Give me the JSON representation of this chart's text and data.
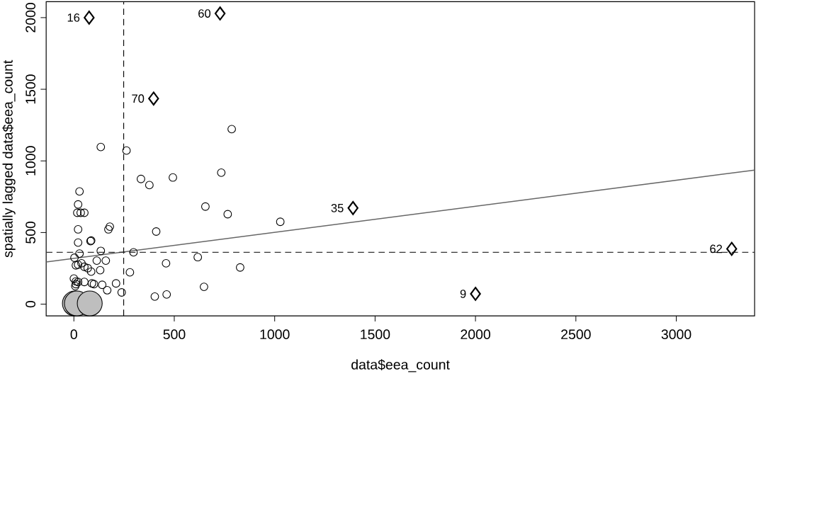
{
  "chart_data": {
    "type": "scatter",
    "xlabel": "data$eea_count",
    "ylabel": "spatially lagged data$eea_count",
    "xlim": [
      -138,
      3390
    ],
    "ylim": [
      -82,
      2111
    ],
    "xticks": [
      0,
      500,
      1000,
      1500,
      2000,
      2500,
      3000
    ],
    "yticks": [
      0,
      500,
      1000,
      1500,
      2000
    ],
    "grid": false,
    "series": [
      {
        "marker": "circle",
        "color": "#000000",
        "x": [
          134,
          262,
          786,
          334,
          376,
          493,
          734,
          655,
          766,
          1028,
          410,
          459,
          617,
          828,
          648,
          462,
          403,
          297,
          28,
          21,
          17,
          34,
          52,
          179,
          172,
          21,
          83,
          86,
          21,
          134,
          28,
          3,
          114,
          159,
          10,
          21,
          52,
          69,
          38,
          86,
          131,
          279,
          0,
          10,
          21,
          52,
          90,
          100,
          141,
          166,
          210,
          238,
          7,
          10
        ],
        "values": [
          1097,
          1072,
          1222,
          874,
          831,
          884,
          918,
          681,
          628,
          575,
          507,
          285,
          328,
          256,
          121,
          68,
          53,
          362,
          787,
          696,
          638,
          638,
          638,
          541,
          522,
          522,
          440,
          444,
          430,
          372,
          353,
          324,
          304,
          304,
          271,
          275,
          261,
          251,
          285,
          227,
          237,
          222,
          179,
          159,
          155,
          155,
          145,
          140,
          135,
          97,
          145,
          82,
          126,
          140
        ]
      },
      {
        "type": "bubble",
        "color": "#bebebe",
        "x": [
          5,
          15,
          79
        ],
        "values": [
          5,
          5,
          5
        ],
        "sizes": [
          1,
          1,
          1
        ]
      },
      {
        "marker": "diamond",
        "color": "#000000",
        "x": [
          76,
          728,
          397,
          1390,
          3276,
          2000
        ],
        "values": [
          2000,
          2029,
          1435,
          671,
          386,
          72
        ]
      },
      {
        "type": "line",
        "color": "#666666",
        "x": [
          -138,
          3390
        ],
        "values": [
          294,
          936
        ]
      }
    ],
    "ref_lines": [
      {
        "axis": "x",
        "value": 248,
        "line_style": "dashed",
        "color": "#000000"
      },
      {
        "axis": "y",
        "value": 362,
        "line_style": "dashed",
        "color": "#333333"
      }
    ],
    "annotations": [
      {
        "text": "16",
        "x": 76,
        "y": 2000
      },
      {
        "text": "60",
        "x": 728,
        "y": 2029
      },
      {
        "text": "70",
        "x": 397,
        "y": 1435
      },
      {
        "text": "35",
        "x": 1390,
        "y": 671
      },
      {
        "text": "62",
        "x": 3276,
        "y": 386
      },
      {
        "text": "9",
        "x": 2000,
        "y": 72
      }
    ]
  }
}
